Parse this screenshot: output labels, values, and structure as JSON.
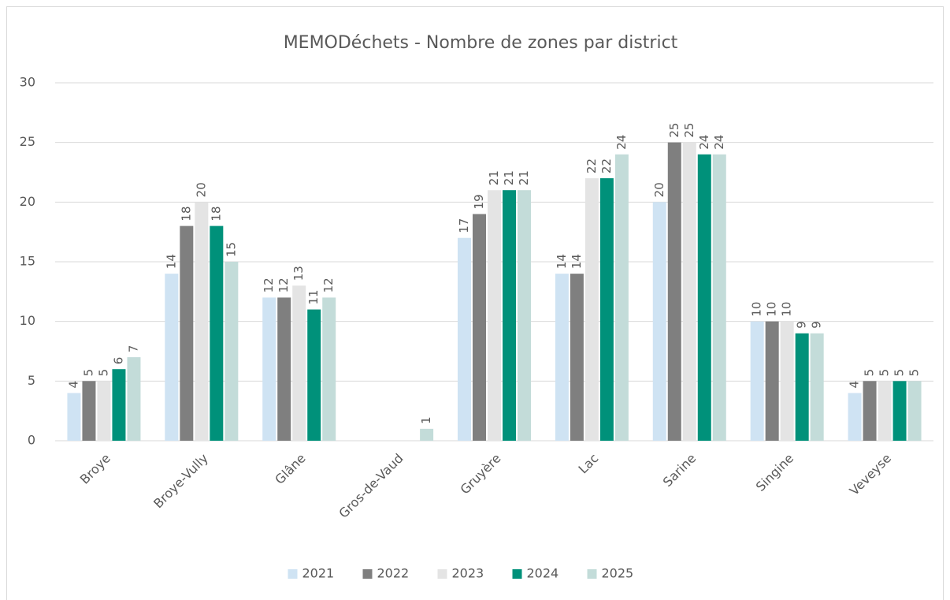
{
  "chart_data": {
    "type": "bar",
    "title": "MEMODéchets - Nombre de zones par district",
    "categories": [
      "Broye",
      "Broye-Vully",
      "Glâne",
      "Gros-de-Vaud",
      "Gruyère",
      "Lac",
      "Sarine",
      "Singine",
      "Veveyse"
    ],
    "series": [
      {
        "name": "2021",
        "color": "#cfe3f3",
        "values": [
          4,
          14,
          12,
          null,
          17,
          14,
          20,
          10,
          4
        ]
      },
      {
        "name": "2022",
        "color": "#7f7f7f",
        "values": [
          5,
          18,
          12,
          null,
          19,
          14,
          25,
          10,
          5
        ]
      },
      {
        "name": "2023",
        "color": "#e4e4e4",
        "values": [
          5,
          20,
          13,
          null,
          21,
          22,
          25,
          10,
          5
        ]
      },
      {
        "name": "2024",
        "color": "#00917a",
        "values": [
          6,
          18,
          11,
          null,
          21,
          22,
          24,
          9,
          5
        ]
      },
      {
        "name": "2025",
        "color": "#c3dcd9",
        "values": [
          7,
          15,
          12,
          1,
          21,
          24,
          24,
          9,
          5
        ]
      }
    ],
    "ylim": [
      0,
      30
    ],
    "yticks": [
      0,
      5,
      10,
      15,
      20,
      25,
      30
    ],
    "grid": true,
    "legend": "bottom"
  }
}
